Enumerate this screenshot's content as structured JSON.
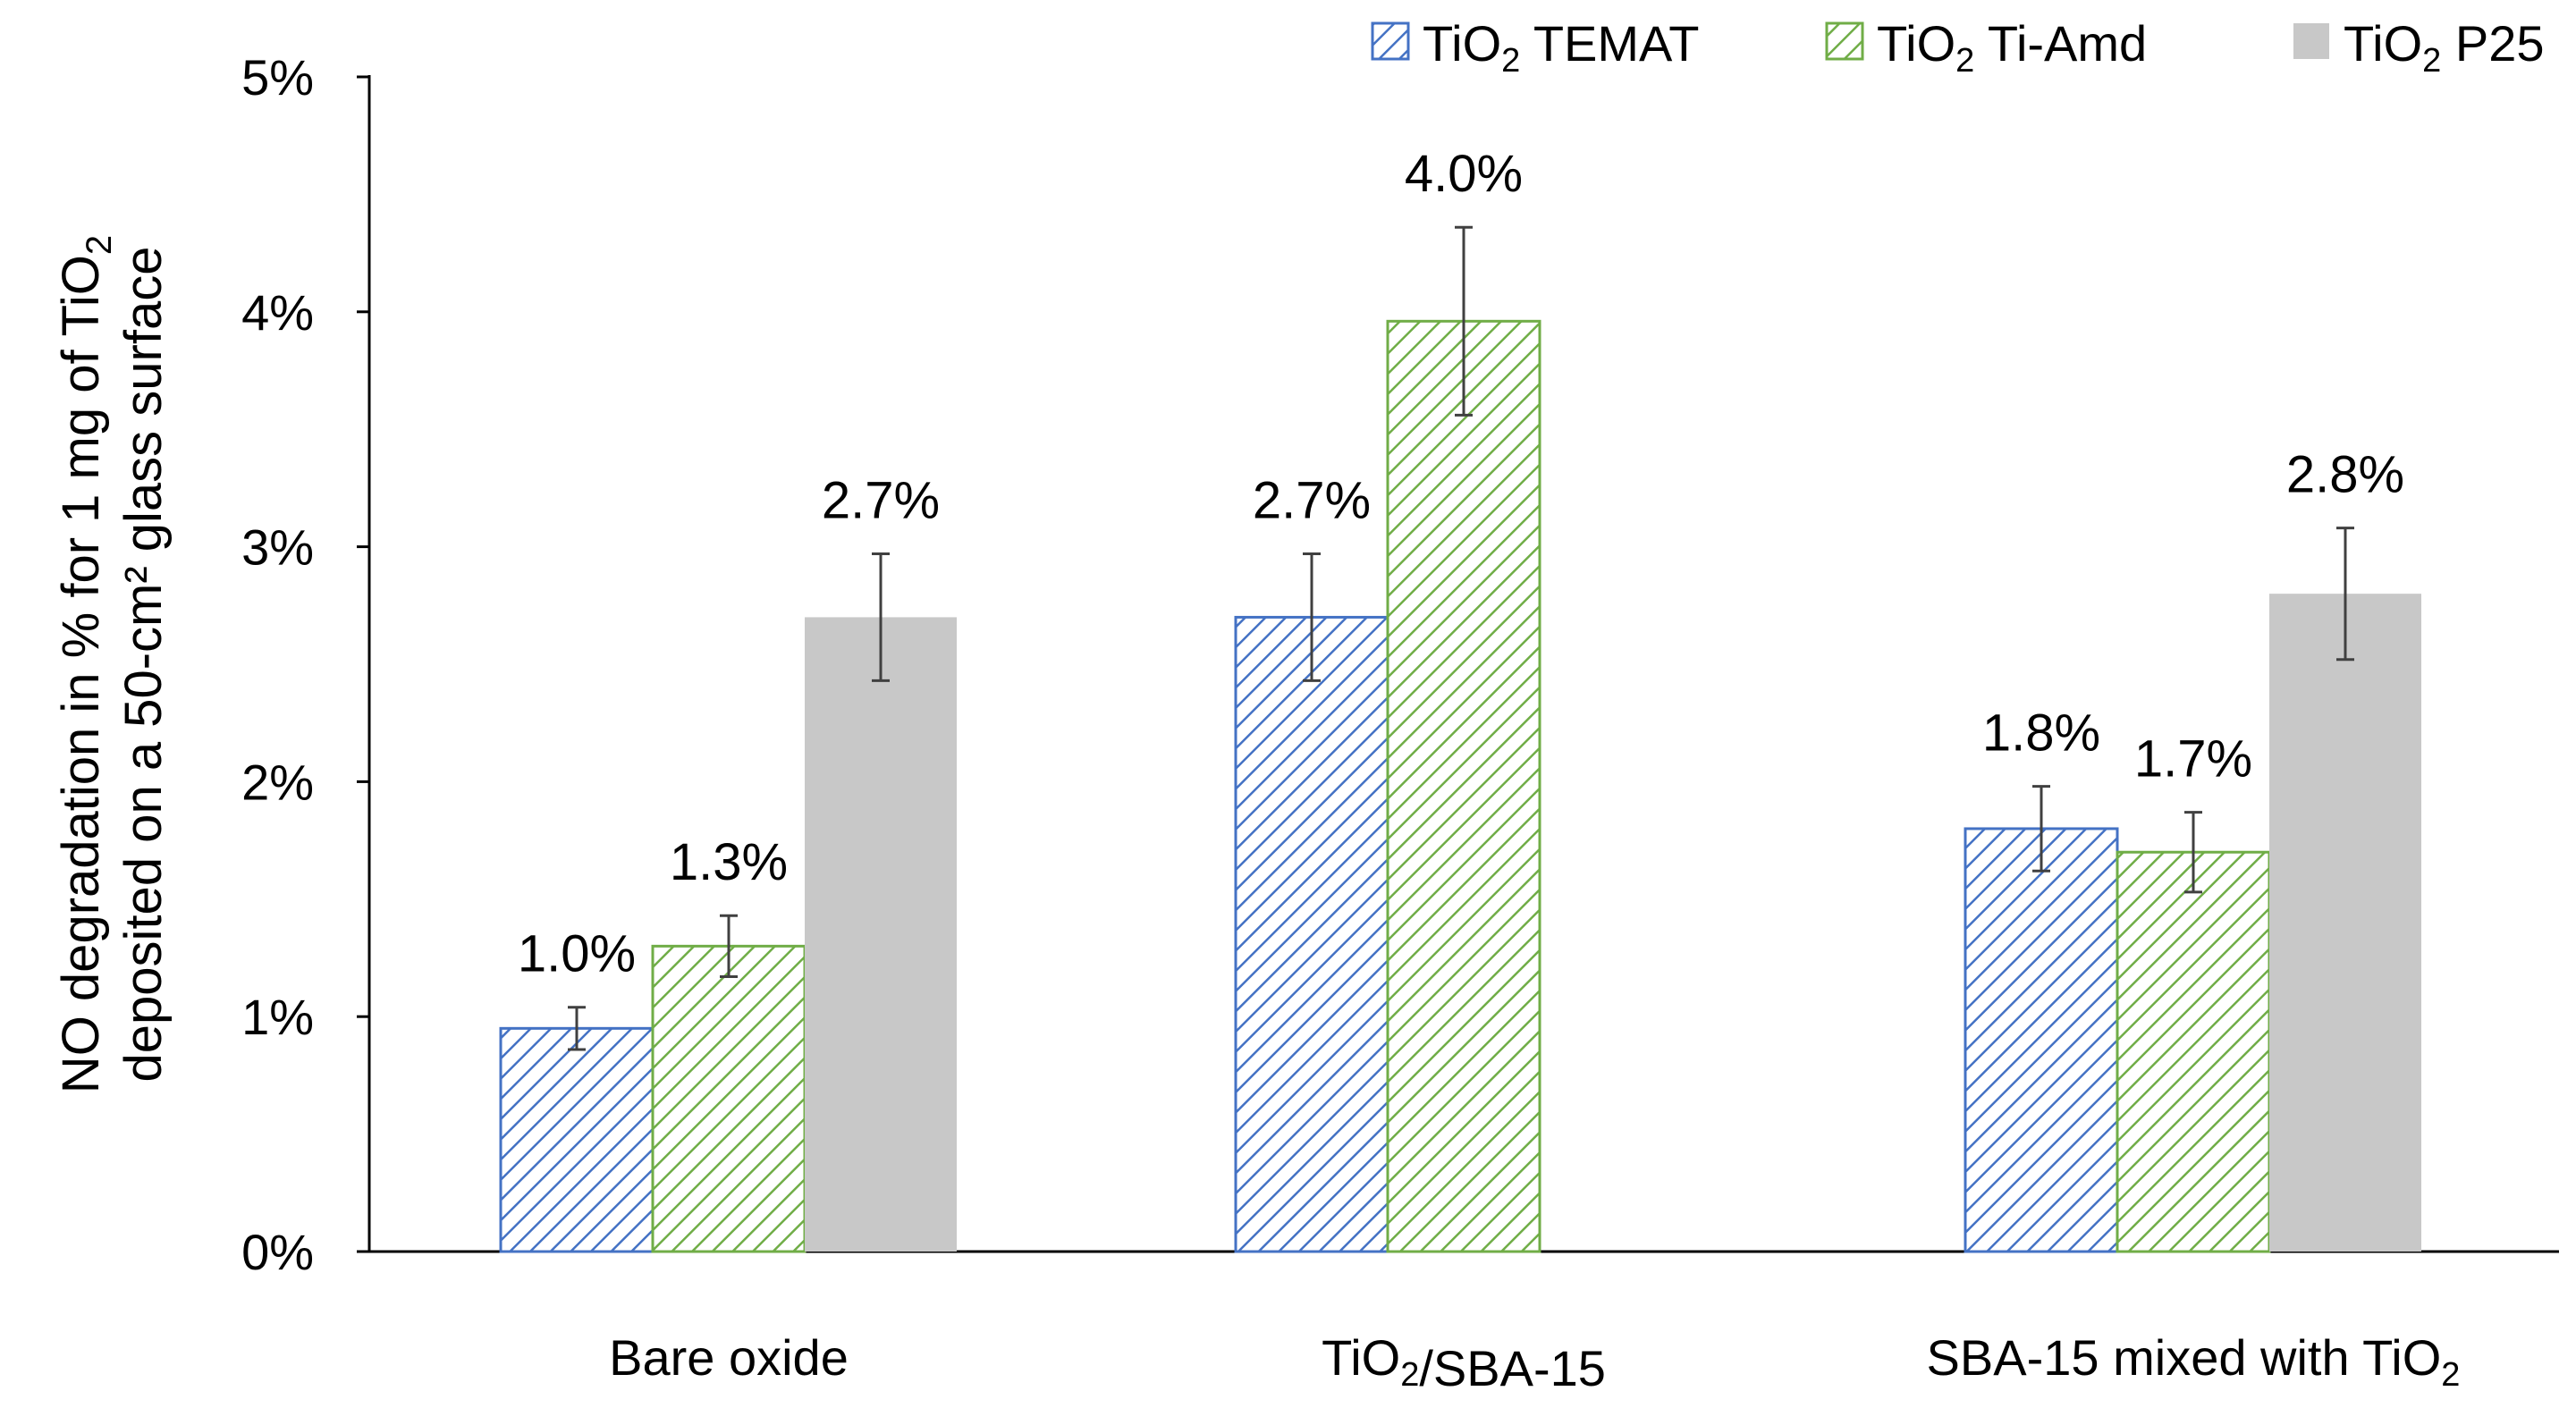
{
  "chart_data": {
    "type": "bar",
    "title": "",
    "xlabel": "",
    "ylabel": {
      "line1": {
        "main": "NO degradation in % for 1 mg of TiO",
        "sub": "2"
      },
      "line2": "deposited on a 50-cm² glass surface"
    },
    "ylim": [
      0,
      5
    ],
    "yticks": [
      "0%",
      "1%",
      "2%",
      "3%",
      "4%",
      "5%"
    ],
    "grid": false,
    "legend_position": "top-right",
    "categories": [
      {
        "parts": [
          {
            "text": "Bare oxide",
            "sub": ""
          }
        ]
      },
      {
        "parts": [
          {
            "text": "TiO",
            "sub": "2"
          },
          {
            "text": "/SBA-15",
            "sub": ""
          }
        ]
      },
      {
        "parts": [
          {
            "text": "SBA-15 mixed with TiO",
            "sub": "2"
          }
        ]
      }
    ],
    "series": [
      {
        "name": {
          "prefix": "TiO",
          "sub": "2",
          "suffix": " TEMAT"
        },
        "pattern": "hatch",
        "color": "#4472C4",
        "values": [
          0.95,
          2.7,
          1.8
        ],
        "errors": [
          0.09,
          0.27,
          0.18
        ],
        "labels": [
          "1.0%",
          "2.7%",
          "1.8%"
        ]
      },
      {
        "name": {
          "prefix": "TiO",
          "sub": "2",
          "suffix": " Ti-Amd"
        },
        "pattern": "hatch",
        "color": "#70AD47",
        "values": [
          1.3,
          3.96,
          1.7
        ],
        "errors": [
          0.13,
          0.4,
          0.17
        ],
        "labels": [
          "1.3%",
          "4.0%",
          "1.7%"
        ]
      },
      {
        "name": {
          "prefix": "TiO",
          "sub": "2",
          "suffix": " P25"
        },
        "pattern": "solid",
        "color": "#C8C8C8",
        "values": [
          2.7,
          null,
          2.8
        ],
        "errors": [
          0.27,
          null,
          0.28
        ],
        "labels": [
          "2.7%",
          null,
          "2.8%"
        ]
      }
    ]
  }
}
